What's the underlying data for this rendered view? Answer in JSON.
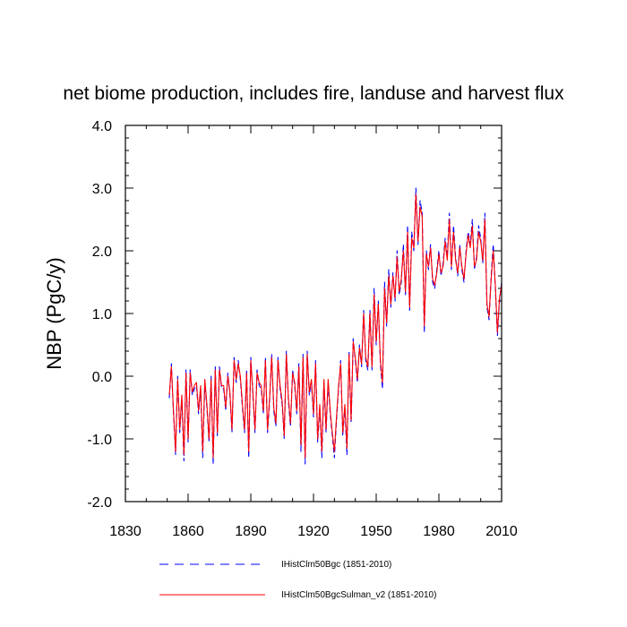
{
  "chart_data": {
    "type": "line",
    "title": "net biome production, includes fire, landuse and harvest flux",
    "ylabel": "NBP  (PgC/y)",
    "xlabel": "",
    "xlim": [
      1830,
      2010
    ],
    "ylim": [
      -2.0,
      4.0
    ],
    "x_ticks": [
      1830,
      1860,
      1890,
      1920,
      1950,
      1980,
      2010
    ],
    "y_ticks": [
      -2.0,
      -1.0,
      0.0,
      1.0,
      2.0,
      3.0,
      4.0
    ],
    "x_tick_labels": [
      "1830",
      "1860",
      "1890",
      "1920",
      "1950",
      "1980",
      "2010"
    ],
    "y_tick_labels": [
      "-2.0",
      "-1.0",
      "0.0",
      "1.0",
      "2.0",
      "3.0",
      "4.0"
    ],
    "legend_position": "bottom",
    "x_start": 1851,
    "series": [
      {
        "name": "IHistClm50Bgc (1851-2010)",
        "color": "#0000ff",
        "dash": "dashed",
        "values": [
          -0.35,
          0.2,
          -0.6,
          -1.25,
          0.0,
          -0.9,
          -0.35,
          -1.35,
          0.1,
          -1.05,
          0.1,
          -0.3,
          -0.2,
          -0.15,
          -0.6,
          -0.2,
          -1.3,
          -0.1,
          -0.5,
          -1.05,
          0.0,
          -1.4,
          0.15,
          -0.95,
          0.15,
          -0.2,
          -0.2,
          -0.55,
          0.05,
          -0.3,
          -0.9,
          0.3,
          -0.1,
          0.25,
          -0.05,
          -0.5,
          -0.9,
          0.1,
          -1.3,
          0.3,
          -0.3,
          -0.9,
          0.1,
          -0.15,
          -0.2,
          -0.6,
          0.3,
          -0.9,
          -0.4,
          0.35,
          -0.55,
          -0.8,
          0.3,
          -0.2,
          -0.45,
          -1.0,
          0.4,
          -0.4,
          -0.8,
          0.1,
          -0.15,
          -0.6,
          0.2,
          -1.2,
          0.35,
          -1.4,
          0.4,
          -0.3,
          -0.1,
          -0.65,
          0.25,
          -1.05,
          -0.5,
          -1.3,
          -0.1,
          -0.9,
          -0.1,
          -0.6,
          -0.95,
          -1.3,
          -0.7,
          -0.2,
          0.25,
          -0.95,
          -0.5,
          -1.25,
          0.4,
          -0.75,
          0.6,
          0.25,
          -0.1,
          0.5,
          0.15,
          1.05,
          0.25,
          0.1,
          1.05,
          0.1,
          1.4,
          0.5,
          1.2,
          0.2,
          -0.2,
          1.5,
          0.8,
          1.7,
          1.1,
          1.65,
          1.2,
          2.0,
          1.3,
          1.5,
          2.1,
          1.3,
          2.4,
          1.05,
          2.3,
          2.0,
          3.0,
          2.1,
          2.8,
          2.6,
          0.7,
          2.0,
          1.7,
          2.1,
          1.5,
          1.4,
          1.7,
          2.0,
          1.6,
          1.8,
          2.2,
          1.9,
          2.6,
          1.7,
          2.4,
          1.9,
          1.6,
          2.1,
          1.7,
          1.5,
          2.0,
          2.3,
          2.1,
          2.5,
          1.7,
          1.9,
          2.4,
          2.2,
          1.8,
          2.6,
          1.1,
          0.9,
          1.6,
          2.1,
          1.4,
          0.65,
          1.2,
          1.5
        ]
      },
      {
        "name": "IHistClm50BgcSulman_v2 (1851-2010)",
        "color": "#ff0000",
        "dash": "solid",
        "values": [
          -0.3,
          0.15,
          -0.55,
          -1.2,
          -0.05,
          -0.85,
          -0.3,
          -1.25,
          0.05,
          -1.0,
          0.05,
          -0.25,
          -0.15,
          -0.1,
          -0.55,
          -0.15,
          -1.2,
          -0.05,
          -0.45,
          -1.0,
          -0.05,
          -1.3,
          0.1,
          -0.9,
          0.1,
          -0.15,
          -0.15,
          -0.5,
          0.0,
          -0.25,
          -0.85,
          0.25,
          -0.05,
          0.2,
          0.0,
          -0.45,
          -0.85,
          0.05,
          -1.2,
          0.25,
          -0.25,
          -0.85,
          0.05,
          -0.1,
          -0.15,
          -0.55,
          0.25,
          -0.85,
          -0.35,
          0.3,
          -0.5,
          -0.75,
          0.25,
          -0.15,
          -0.4,
          -0.95,
          0.35,
          -0.35,
          -0.75,
          0.05,
          -0.1,
          -0.55,
          0.15,
          -1.1,
          0.3,
          -1.3,
          0.35,
          -0.25,
          -0.05,
          -0.6,
          0.2,
          -1.0,
          -0.45,
          -1.2,
          -0.05,
          -0.85,
          -0.05,
          -0.55,
          -0.9,
          -1.2,
          -0.65,
          -0.15,
          0.2,
          -0.9,
          -0.45,
          -1.15,
          0.35,
          -0.7,
          0.55,
          0.3,
          -0.05,
          0.45,
          0.2,
          1.0,
          0.3,
          0.15,
          1.0,
          0.15,
          1.3,
          0.55,
          1.15,
          0.25,
          -0.1,
          1.4,
          0.85,
          1.6,
          1.15,
          1.6,
          1.25,
          1.9,
          1.35,
          1.55,
          2.0,
          1.35,
          2.3,
          1.1,
          2.2,
          2.05,
          2.9,
          2.15,
          2.7,
          2.55,
          0.8,
          1.95,
          1.75,
          2.05,
          1.55,
          1.45,
          1.65,
          1.95,
          1.65,
          1.75,
          2.15,
          1.85,
          2.5,
          1.75,
          2.3,
          1.85,
          1.65,
          2.05,
          1.75,
          1.55,
          1.95,
          2.25,
          2.05,
          2.4,
          1.75,
          1.85,
          2.3,
          2.15,
          1.85,
          2.5,
          1.15,
          0.95,
          1.55,
          2.0,
          1.45,
          0.7,
          1.25,
          1.45
        ]
      }
    ]
  }
}
